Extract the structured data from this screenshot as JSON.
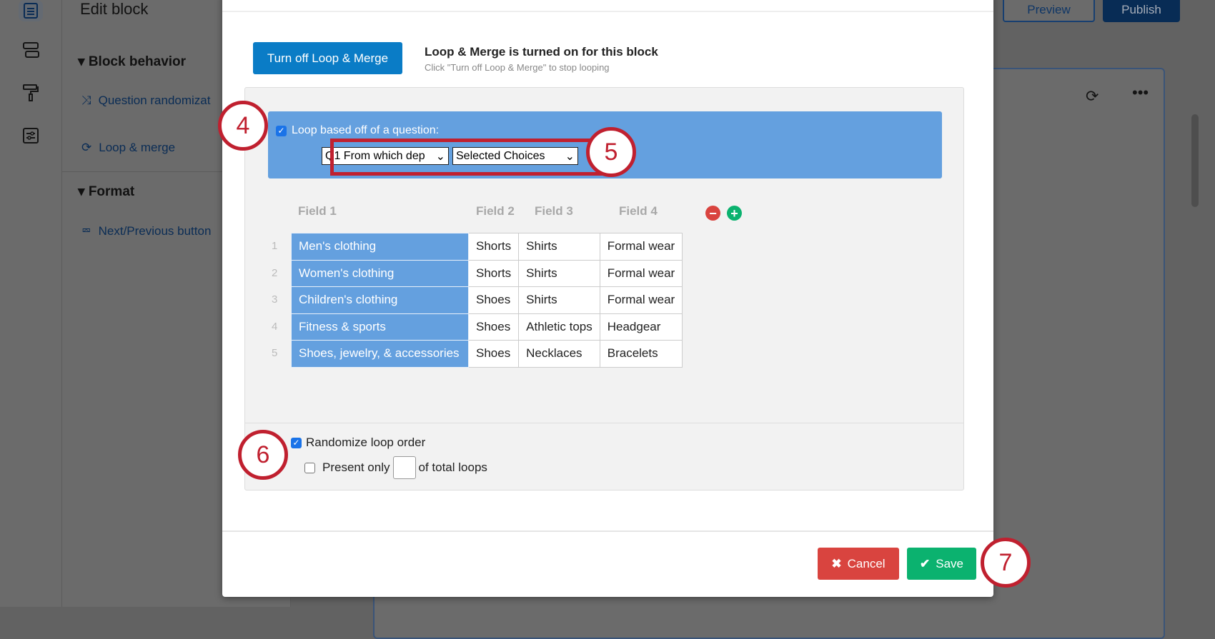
{
  "background": {
    "title": "Edit block",
    "sections": [
      {
        "label": "Block behavior",
        "items": [
          {
            "label": "Question randomizat",
            "icon": "shuffle-icon"
          },
          {
            "label": "Loop & merge",
            "icon": "loop-icon"
          }
        ]
      },
      {
        "label": "Format",
        "items": [
          {
            "label": "Next/Previous button",
            "icon": "cursor-icon"
          }
        ]
      }
    ],
    "preview_label": "Preview",
    "publish_label": "Publish"
  },
  "modal": {
    "turn_off_label": "Turn off Loop & Merge",
    "status_title": "Loop & Merge is turned on for this block",
    "status_hint": "Click \"Turn off Loop & Merge\" to stop looping",
    "loop_question_label": "Loop based off of a question:",
    "loop_question_checked": true,
    "question_select": "Q1 From which dep",
    "choice_select": "Selected Choices",
    "fields": [
      "Field 1",
      "Field 2",
      "Field 3",
      "Field 4"
    ],
    "rows": [
      {
        "n": "1",
        "cells": [
          "Men's clothing",
          "Shorts",
          "Shirts",
          "Formal wear"
        ]
      },
      {
        "n": "2",
        "cells": [
          "Women's clothing",
          "Shorts",
          "Shirts",
          "Formal wear"
        ]
      },
      {
        "n": "3",
        "cells": [
          "Children's clothing",
          "Shoes",
          "Shirts",
          "Formal wear"
        ]
      },
      {
        "n": "4",
        "cells": [
          "Fitness & sports",
          "Shoes",
          "Athletic tops",
          "Headgear"
        ]
      },
      {
        "n": "5",
        "cells": [
          "Shoes, jewelry, & accessories",
          "Shoes",
          "Necklaces",
          "Bracelets"
        ]
      }
    ],
    "randomize_label": "Randomize loop order",
    "randomize_checked": true,
    "present_only_label": "Present only",
    "present_only_checked": false,
    "present_only_value": "",
    "of_total_label": "of total loops",
    "cancel_label": "Cancel",
    "save_label": "Save",
    "colors": {
      "cancel": "#d9443f",
      "save": "#0bb26f",
      "primary": "#0a7cc6",
      "highlight": "#64a0df",
      "annotation": "#c0202f"
    }
  },
  "annotations": [
    "4",
    "5",
    "6",
    "7"
  ]
}
